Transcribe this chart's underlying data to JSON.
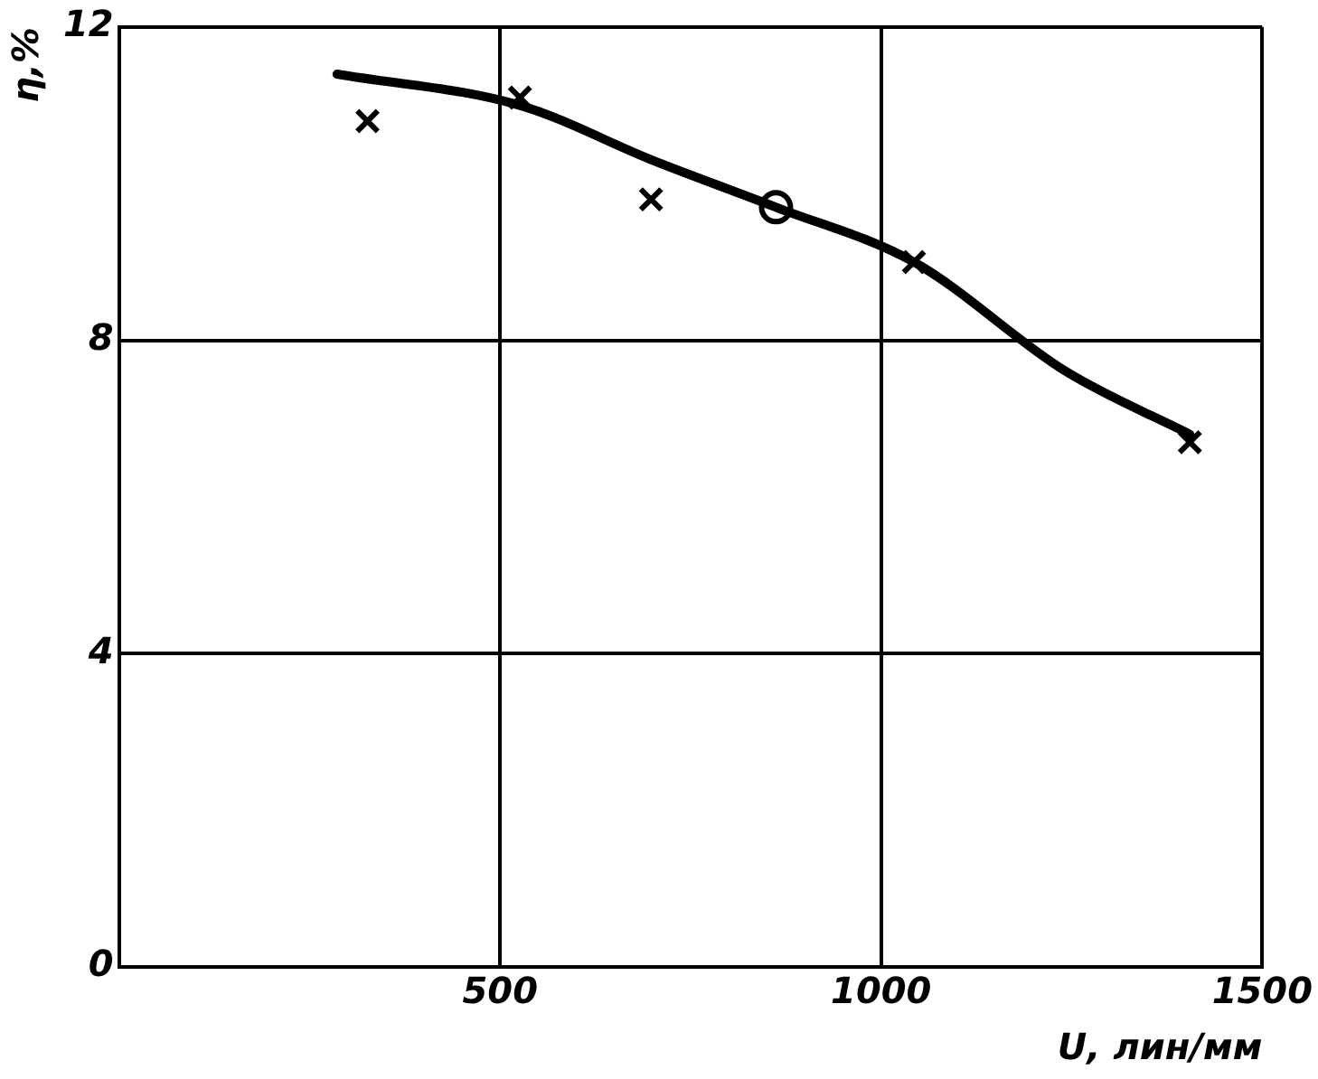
{
  "chart_data": {
    "type": "scatter",
    "xlabel": "U, лин/мм",
    "ylabel": "η,%",
    "xlim": [
      0,
      1500
    ],
    "xticks": [
      500,
      1000,
      1500
    ],
    "ylim": [
      0,
      12
    ],
    "yticks": [
      0,
      4,
      8,
      12
    ],
    "grid": true,
    "legend": false,
    "series": [
      {
        "type": "line",
        "marker": "none",
        "color": "#000000",
        "x": [
          286,
          526,
          700,
          862,
          1043,
          1243,
          1405
        ],
        "values": [
          11.4,
          11.0,
          10.3,
          9.7,
          9.0,
          7.6,
          6.8
        ]
      },
      {
        "marker": "cross",
        "color": "#000000",
        "x": [
          326,
          526,
          698,
          1043,
          1405
        ],
        "values": [
          10.8,
          11.1,
          9.8,
          9.0,
          6.7
        ]
      },
      {
        "marker": "circle",
        "color": "#000000",
        "x": [
          862
        ],
        "values": [
          9.7
        ]
      }
    ]
  }
}
